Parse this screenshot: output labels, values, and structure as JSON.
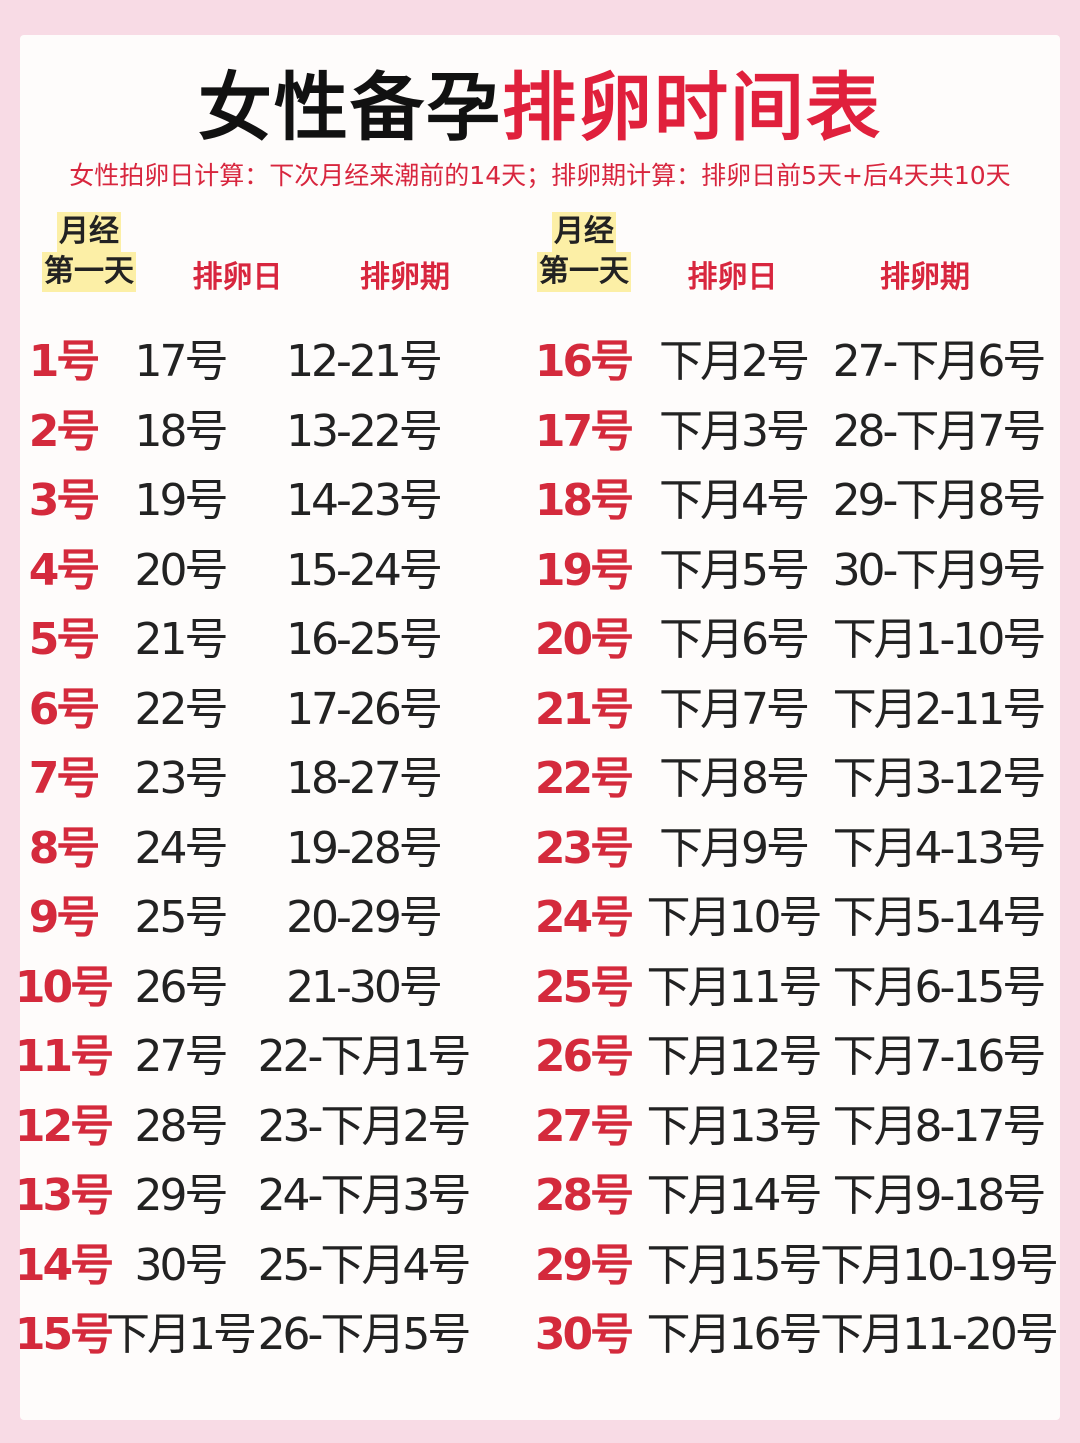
{
  "title": {
    "black1": "女性备孕",
    "red": "排卵时间表"
  },
  "subtitle": "女性拍卵日计算：下次月经来潮前的14天；排卵期计算：排卵日前5天+后4天共10天",
  "headers": {
    "first_day_line1": "月经",
    "first_day_line2": "第一天",
    "ovulation_day": "排卵日",
    "ovulation_period": "排卵期"
  },
  "colors": {
    "accent_red": "#d8263e",
    "highlight_yellow": "#fcefa6",
    "border_pink": "#f8dbe5"
  },
  "rows": [
    [
      "1号",
      "17号",
      "12-21号",
      "16号",
      "下月2号",
      "27-下月6号"
    ],
    [
      "2号",
      "18号",
      "13-22号",
      "17号",
      "下月3号",
      "28-下月7号"
    ],
    [
      "3号",
      "19号",
      "14-23号",
      "18号",
      "下月4号",
      "29-下月8号"
    ],
    [
      "4号",
      "20号",
      "15-24号",
      "19号",
      "下月5号",
      "30-下月9号"
    ],
    [
      "5号",
      "21号",
      "16-25号",
      "20号",
      "下月6号",
      "下月1-10号"
    ],
    [
      "6号",
      "22号",
      "17-26号",
      "21号",
      "下月7号",
      "下月2-11号"
    ],
    [
      "7号",
      "23号",
      "18-27号",
      "22号",
      "下月8号",
      "下月3-12号"
    ],
    [
      "8号",
      "24号",
      "19-28号",
      "23号",
      "下月9号",
      "下月4-13号"
    ],
    [
      "9号",
      "25号",
      "20-29号",
      "24号",
      "下月10号",
      "下月5-14号"
    ],
    [
      "10号",
      "26号",
      "21-30号",
      "25号",
      "下月11号",
      "下月6-15号"
    ],
    [
      "11号",
      "27号",
      "22-下月1号",
      "26号",
      "下月12号",
      "下月7-16号"
    ],
    [
      "12号",
      "28号",
      "23-下月2号",
      "27号",
      "下月13号",
      "下月8-17号"
    ],
    [
      "13号",
      "29号",
      "24-下月3号",
      "28号",
      "下月14号",
      "下月9-18号"
    ],
    [
      "14号",
      "30号",
      "25-下月4号",
      "29号",
      "下月15号",
      "下月10-19号"
    ],
    [
      "15号",
      "下月1号",
      "26-下月5号",
      "30号",
      "下月16号",
      "下月11-20号"
    ]
  ]
}
